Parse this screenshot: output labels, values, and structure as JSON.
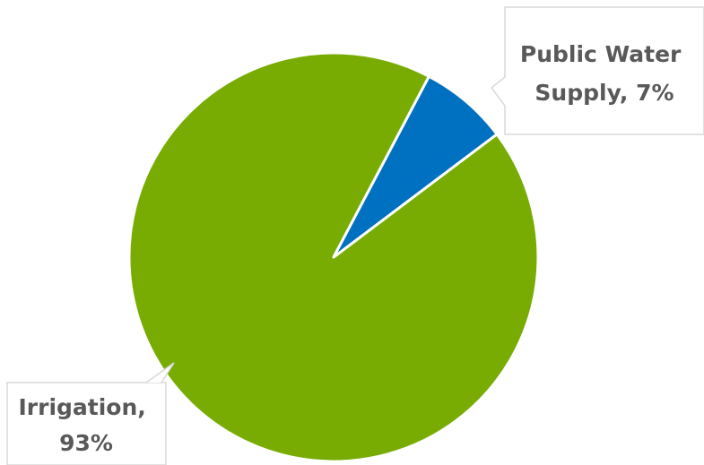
{
  "chart_data": {
    "type": "pie",
    "categories": [
      "Irrigation",
      "Public Water Supply"
    ],
    "values": [
      93,
      7
    ],
    "value_unit": "%",
    "data_labels": [
      {
        "lines": [
          "Irrigation,",
          "93%"
        ]
      },
      {
        "lines": [
          "Public Water",
          "Supply, 7%"
        ]
      }
    ],
    "colors": [
      "#78AC02",
      "#0070C0"
    ],
    "slice_border_color": "#ffffff",
    "title": "",
    "legend": "none"
  }
}
